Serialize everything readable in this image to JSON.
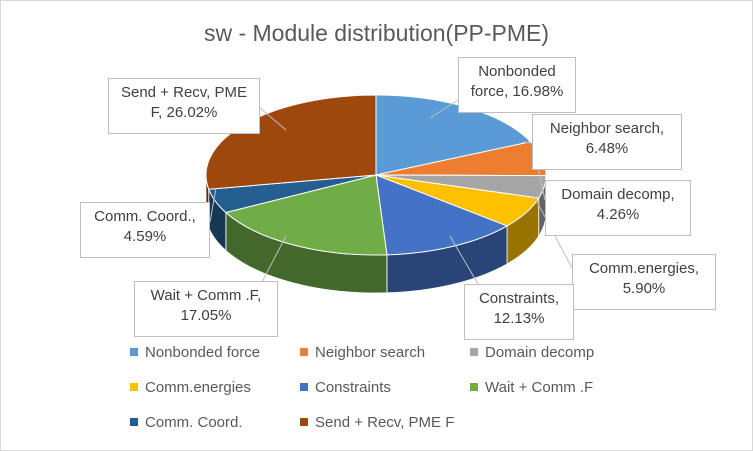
{
  "chart_data": {
    "type": "pie",
    "title": "sw - Module distribution(PP-PME)",
    "slices": [
      {
        "name": "Nonbonded force",
        "value": 16.98,
        "label": "Nonbonded\nforce, 16.98%",
        "color": "#5b9bd5"
      },
      {
        "name": "Neighbor search",
        "value": 6.48,
        "label": "Neighbor search,\n6.48%",
        "color": "#ed7d31"
      },
      {
        "name": "Domain decomp",
        "value": 4.26,
        "label": "Domain decomp,\n4.26%",
        "color": "#a5a5a5"
      },
      {
        "name": "Comm.energies",
        "value": 5.9,
        "label": "Comm.energies,\n5.90%",
        "color": "#ffc000"
      },
      {
        "name": "Constraints",
        "value": 12.13,
        "label": "Constraints,\n12.13%",
        "color": "#4472c4"
      },
      {
        "name": "Wait + Comm .F",
        "value": 17.05,
        "label": "Wait + Comm .F,\n17.05%",
        "color": "#70ad47"
      },
      {
        "name": "Comm. Coord.",
        "value": 4.59,
        "label": "Comm. Coord.,\n4.59%",
        "color": "#255e91"
      },
      {
        "name": "Send + Recv, PME F",
        "value": 26.02,
        "label": "Send + Recv, PME\nF, 26.02%",
        "color": "#9e480e"
      }
    ],
    "legend_position": "bottom"
  }
}
